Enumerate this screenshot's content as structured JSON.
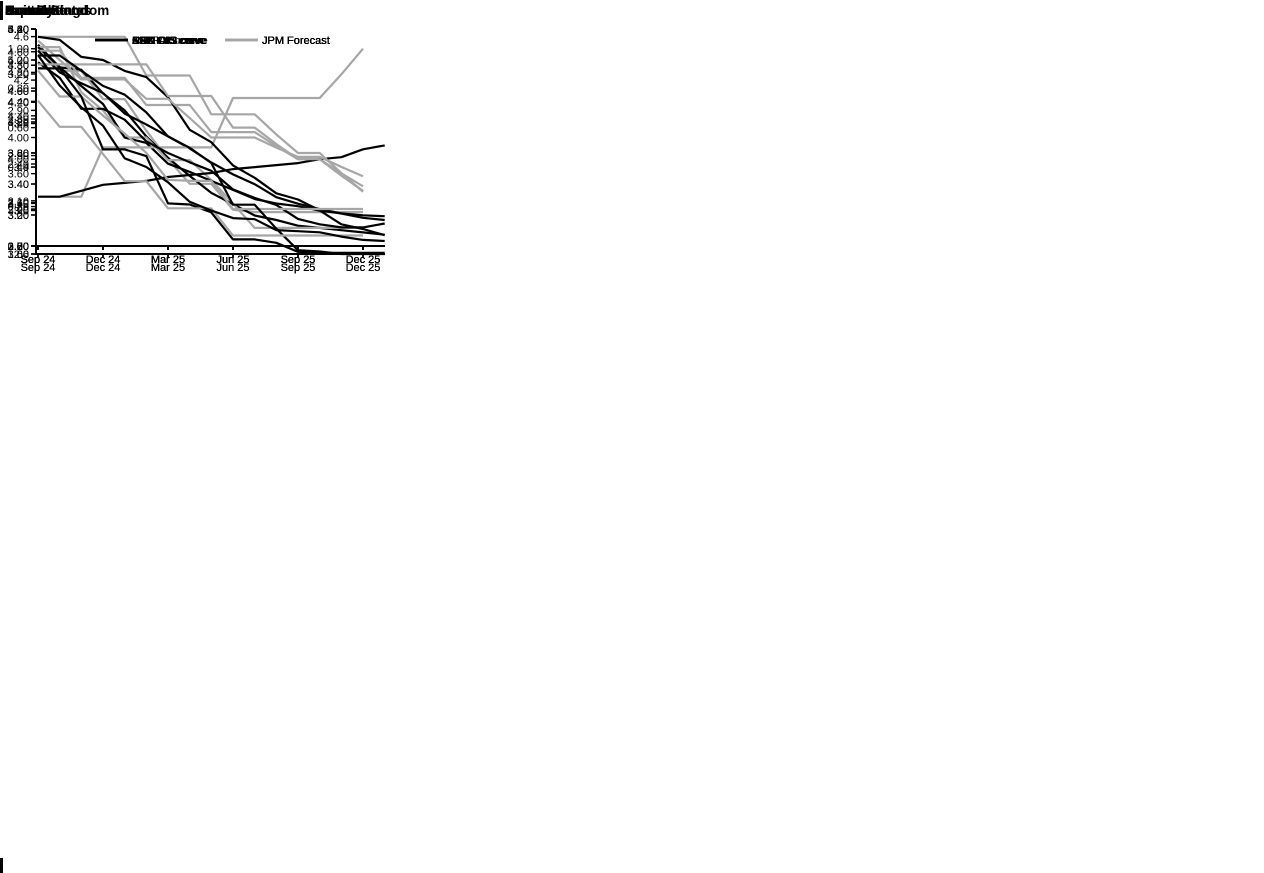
{
  "page": {
    "background": "#ffffff",
    "layout": "3x3 grid of rate forecast line charts"
  },
  "colors": {
    "market_curve": "#000000",
    "forecast_curve": "#a6a6a6",
    "axis": "#000000"
  },
  "forecast_label": "JPM Forecast",
  "x_axis_note": "monthly points Sep 2024 through Dec 2025 plus short extension",
  "chart_data": [
    {
      "type": "line",
      "title": "Eurozone",
      "section_bar": true,
      "x_ticks": [
        "Sep 24",
        "Dec 24",
        "Mar 25",
        "Jun 25",
        "Sep 25",
        "Dec 25"
      ],
      "y_ticks": [
        "1.70",
        "2.10",
        "2.50",
        "2.90",
        "3.30"
      ],
      "ylim": [
        1.7,
        3.62
      ],
      "grid": false,
      "legend_position": "top",
      "legend": [
        "€STR curve",
        "JPM Forecast"
      ],
      "series": [
        {
          "name": "€STR curve",
          "color": "#000000",
          "values": [
            3.48,
            3.28,
            3.26,
            3.05,
            2.9,
            2.67,
            2.48,
            2.32,
            2.17,
            2.07,
            1.97,
            1.93,
            1.88,
            1.86,
            1.84,
            1.82,
            1.8
          ]
        },
        {
          "name": "JPM Forecast",
          "color": "#a6a6a6",
          "values": [
            3.48,
            3.25,
            3.25,
            3.0,
            3.0,
            2.72,
            2.47,
            2.25,
            2.25,
            2.02,
            2.0,
            2.0,
            2.0,
            2.0,
            2.0,
            2.0
          ]
        }
      ]
    },
    {
      "type": "line",
      "title": "United States",
      "section_bar": false,
      "x_ticks": [
        "Sep 24",
        "Dec 24",
        "Mar 25",
        "Jun 25",
        "Sep 25",
        "Dec 25"
      ],
      "y_ticks": [
        "2.80",
        "3.20",
        "3.60",
        "4.00",
        "4.40",
        "4.80",
        "5.20"
      ],
      "ylim": [
        2.8,
        5.2
      ],
      "grid": false,
      "legend_position": "top",
      "legend": [
        "USD OIS curve",
        "JPM Forecast"
      ],
      "series": [
        {
          "name": "USD OIS curve",
          "color": "#000000",
          "values": [
            5.0,
            4.78,
            4.57,
            4.37,
            4.0,
            3.94,
            3.71,
            3.62,
            3.52,
            3.42,
            3.32,
            3.27,
            3.24,
            3.19,
            3.16,
            3.14,
            3.13
          ]
        },
        {
          "name": "JPM Forecast",
          "color": "#a6a6a6",
          "values": [
            5.0,
            5.0,
            4.5,
            4.3,
            4.0,
            4.0,
            3.75,
            3.75,
            3.53,
            3.27,
            3.0,
            3.0,
            3.0,
            3.0,
            3.0,
            3.0
          ]
        }
      ]
    },
    {
      "type": "line",
      "title": "United Kingdom",
      "section_bar": false,
      "x_ticks": [
        "Sep 24",
        "Dec 24",
        "Mar 25",
        "Jun 25",
        "Sep 25",
        "Dec 25"
      ],
      "y_ticks": [
        "3.20",
        "3.60",
        "4.00",
        "4.40",
        "4.80",
        "5.20"
      ],
      "ylim": [
        3.2,
        5.2
      ],
      "grid": false,
      "legend_position": "top",
      "legend": [
        "SONIA curve",
        "JPM Forecast"
      ],
      "series": [
        {
          "name": "SONIA curve",
          "color": "#000000",
          "values": [
            5.0,
            4.8,
            4.7,
            4.61,
            4.42,
            4.32,
            4.21,
            4.1,
            3.97,
            3.86,
            3.77,
            3.65,
            3.59,
            3.54,
            3.5,
            3.46,
            3.44
          ]
        },
        {
          "name": "JPM Forecast",
          "color": "#a6a6a6",
          "values": [
            5.0,
            5.0,
            4.75,
            4.75,
            4.75,
            4.5,
            4.5,
            4.5,
            4.25,
            4.25,
            4.25,
            4.12,
            4.0,
            4.0,
            3.87,
            3.75
          ]
        }
      ]
    },
    {
      "type": "line",
      "title": "Japan",
      "section_bar": true,
      "x_ticks": [
        "Sep 24",
        "Dec 24",
        "Mar 25",
        "Jun 25",
        "Sep 25",
        "Dec 25"
      ],
      "y_ticks": [
        "0.00",
        "0.20",
        "0.40",
        "0.60",
        "0.80",
        "1.00"
      ],
      "ylim": [
        0.0,
        1.1
      ],
      "grid": false,
      "legend_position": "top",
      "legend": [
        "JGB OIS curve",
        "JPM Forecast"
      ],
      "series": [
        {
          "name": "JGB OIS curve",
          "color": "#000000",
          "values": [
            0.25,
            0.25,
            0.28,
            0.31,
            0.32,
            0.33,
            0.35,
            0.36,
            0.37,
            0.39,
            0.4,
            0.41,
            0.42,
            0.44,
            0.45,
            0.49,
            0.51
          ]
        },
        {
          "name": "JPM Forecast",
          "color": "#a6a6a6",
          "values": [
            0.25,
            0.25,
            0.25,
            0.5,
            0.5,
            0.5,
            0.5,
            0.5,
            0.5,
            0.75,
            0.75,
            0.75,
            0.75,
            0.75,
            0.87,
            1.0
          ]
        }
      ]
    },
    {
      "type": "line",
      "title": "Australia",
      "section_bar": false,
      "x_ticks": [
        "Sep 24",
        "Dec 24",
        "Mar 25",
        "Jun 25",
        "Sep 25",
        "Dec 25"
      ],
      "y_ticks": [
        "3.00",
        "3.20",
        "3.40",
        "3.60",
        "3.80",
        "4.00",
        "4.20",
        "4.40"
      ],
      "ylim": [
        3.0,
        4.4
      ],
      "grid": false,
      "legend_position": "top",
      "legend": [
        "AUD OIS curve",
        "JPM Forecast"
      ],
      "series": [
        {
          "name": "AUD OIS curve",
          "color": "#000000",
          "values": [
            4.35,
            4.33,
            4.22,
            4.2,
            4.13,
            4.09,
            3.96,
            3.75,
            3.67,
            3.52,
            3.44,
            3.34,
            3.3,
            3.23,
            3.14,
            3.11,
            3.07
          ]
        },
        {
          "name": "JPM Forecast",
          "color": "#a6a6a6",
          "values": [
            4.35,
            4.35,
            4.35,
            4.35,
            4.35,
            4.1,
            4.1,
            4.1,
            3.85,
            3.85,
            3.85,
            3.72,
            3.6,
            3.6,
            3.47,
            3.35
          ]
        }
      ]
    },
    {
      "type": "line",
      "title": "New Zealand",
      "section_bar": false,
      "x_ticks": [
        "Sep 24",
        "Dec 24",
        "Mar 25",
        "Jun 25",
        "Sep 25",
        "Dec 25"
      ],
      "y_ticks": [
        "2.60",
        "3.00",
        "3.40",
        "3.80",
        "4.20",
        "4.60",
        "5.00",
        "5.40"
      ],
      "ylim": [
        2.6,
        5.4
      ],
      "grid": false,
      "legend_position": "top",
      "legend": [
        "NZD OIS curve",
        "JPM Forecast"
      ],
      "series": [
        {
          "name": "NZD OIS curve",
          "color": "#000000",
          "values": [
            4.97,
            4.77,
            4.37,
            4.37,
            4.23,
            3.95,
            3.8,
            3.68,
            3.57,
            3.33,
            3.22,
            3.13,
            2.95,
            2.88,
            2.84,
            2.84,
            2.89
          ]
        },
        {
          "name": "JPM Forecast",
          "color": "#a6a6a6",
          "values": [
            5.25,
            5.0,
            4.75,
            4.75,
            4.75,
            4.5,
            4.5,
            4.25,
            4.0,
            4.0,
            4.0,
            3.87,
            3.75,
            3.75,
            3.62,
            3.5
          ]
        }
      ]
    },
    {
      "type": "line",
      "title": "Sweden",
      "section_bar": true,
      "x_ticks": [
        "Sep 24",
        "Dec 24",
        "Mar 25",
        "Jun 25",
        "Sep 25",
        "Dec 25"
      ],
      "y_ticks": [
        "1.60",
        "2.00",
        "2.40",
        "2.80",
        "3.20",
        "3.60"
      ],
      "ylim": [
        1.6,
        3.6
      ],
      "grid": false,
      "legend_position": "top",
      "legend": [
        "SEK OIS curve",
        "JPM Forecast"
      ],
      "series": [
        {
          "name": "SEK OIS curve",
          "color": "#000000",
          "values": [
            3.25,
            3.25,
            3.0,
            2.53,
            2.53,
            2.47,
            2.05,
            2.04,
            1.97,
            1.73,
            1.73,
            1.7,
            1.62,
            1.61,
            1.61,
            1.61,
            1.61
          ]
        },
        {
          "name": "JPM Forecast",
          "color": "#a6a6a6",
          "values": [
            3.23,
            3.0,
            3.0,
            2.83,
            2.67,
            2.5,
            2.26,
            2.25,
            2.25,
            2.0,
            2.0,
            2.0,
            2.0,
            2.0,
            2.0,
            2.0
          ]
        }
      ]
    },
    {
      "type": "line",
      "title": "Norway",
      "section_bar": false,
      "x_ticks": [
        "Sep 24",
        "Dec 24",
        "Mar 25",
        "Jun 25",
        "Sep 25",
        "Dec 25"
      ],
      "y_ticks": [
        "3.00",
        "3.40",
        "3.80",
        "4.20",
        "4.60"
      ],
      "ylim": [
        3.0,
        4.78
      ],
      "grid": false,
      "legend_position": "top",
      "legend": [
        "NOK OIS curve",
        "JPM Forecast"
      ],
      "series": [
        {
          "name": "NOK OIS curve",
          "color": "#000000",
          "values": [
            4.57,
            4.57,
            4.45,
            4.33,
            4.26,
            4.12,
            3.93,
            3.84,
            3.72,
            3.39,
            3.39,
            3.2,
            3.03,
            3.02,
            3.0,
            3.0,
            3.0
          ]
        },
        {
          "name": "JPM Forecast",
          "color": "#a6a6a6",
          "values": [
            4.5,
            4.5,
            4.5,
            4.5,
            4.5,
            4.5,
            4.25,
            4.25,
            4.25,
            4.0,
            4.0,
            3.87,
            3.75,
            3.75,
            3.62,
            3.5
          ]
        }
      ]
    },
    {
      "type": "line",
      "title": "Canada",
      "section_bar": false,
      "x_ticks": [
        "Sep 24",
        "Dec 24",
        "Mar 25",
        "Jun 25",
        "Sep 25",
        "Dec 25"
      ],
      "y_ticks": [
        "2.6",
        "3.0",
        "3.4",
        "3.8",
        "4.2",
        "4.6"
      ],
      "ylim": [
        2.6,
        4.67
      ],
      "grid": false,
      "legend_position": "top",
      "legend": [
        "CAD OIS curve",
        "JPM Forecast"
      ],
      "series": [
        {
          "name": "CAD OIS curve",
          "color": "#000000",
          "values": [
            4.43,
            4.15,
            3.95,
            3.78,
            3.48,
            3.4,
            3.26,
            3.08,
            3.0,
            2.93,
            2.92,
            2.82,
            2.81,
            2.8,
            2.76,
            2.73,
            2.72
          ]
        },
        {
          "name": "JPM Forecast",
          "color": "#a6a6a6",
          "values": [
            4.01,
            3.77,
            3.77,
            3.52,
            3.27,
            3.27,
            3.02,
            3.02,
            3.02,
            2.77,
            2.77,
            2.77,
            2.77,
            2.77,
            2.77,
            2.77
          ]
        }
      ]
    }
  ]
}
